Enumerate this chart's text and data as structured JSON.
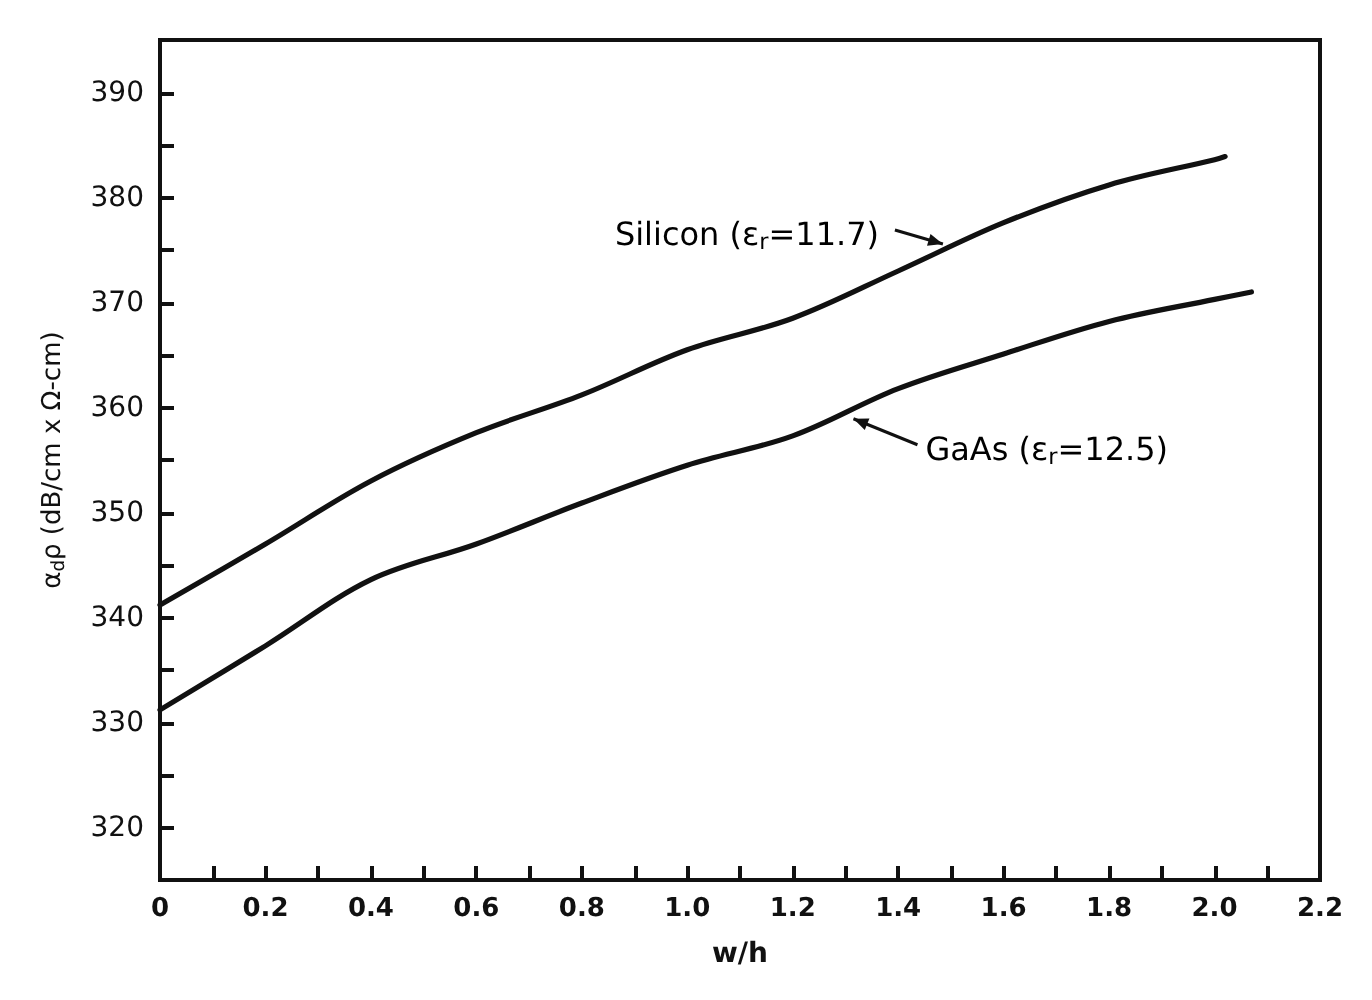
{
  "chart_data": {
    "type": "line",
    "xlabel": "w/h",
    "ylabel": "α$_{d}$ρ (dB/cm x Ω-cm)",
    "xlim": [
      0,
      2.2
    ],
    "ylim": [
      315,
      395
    ],
    "xticks": [
      0,
      {
        "value": 0.1,
        "label": null
      },
      0.2,
      {
        "value": 0.3,
        "label": null
      },
      0.4,
      {
        "value": 0.5,
        "label": null
      },
      0.6,
      {
        "value": 0.7,
        "label": null
      },
      0.8,
      {
        "value": 0.9,
        "label": null
      },
      {
        "value": 1,
        "label": "1.0"
      },
      {
        "value": 1.1,
        "label": null
      },
      1.2,
      {
        "value": 1.3,
        "label": null
      },
      1.4,
      {
        "value": 1.5,
        "label": null
      },
      1.6,
      {
        "value": 1.7,
        "label": null
      },
      1.8,
      {
        "value": 1.9,
        "label": null
      },
      {
        "value": 2,
        "label": "2.0"
      },
      {
        "value": 2.1,
        "label": null
      },
      2.2
    ],
    "yticks": [
      320,
      {
        "value": 325,
        "label": null
      },
      330,
      {
        "value": 335,
        "label": null
      },
      340,
      {
        "value": 345,
        "label": null
      },
      350,
      {
        "value": 355,
        "label": null
      },
      360,
      {
        "value": 365,
        "label": null
      },
      370,
      {
        "value": 375,
        "label": null
      },
      380,
      {
        "value": 385,
        "label": null
      },
      390
    ],
    "grid": false,
    "marker": "none",
    "line_style": "solid",
    "series": [
      {
        "color": "#111111",
        "x": [
          0,
          0.2,
          0.4,
          0.6,
          0.8,
          1.0,
          1.2,
          1.4,
          1.6,
          1.8,
          2.0,
          2.02
        ],
        "values": [
          341.2,
          347,
          353,
          357.6,
          361.2,
          365.5,
          368.5,
          373,
          377.6,
          381.2,
          383.6,
          383.9
        ]
      },
      {
        "color": "#111111",
        "x": [
          0,
          0.2,
          0.4,
          0.6,
          0.8,
          1.0,
          1.2,
          1.4,
          1.6,
          1.8,
          2.0,
          2.07
        ],
        "values": [
          331.2,
          337.3,
          343.6,
          347,
          350.9,
          354.5,
          357.3,
          361.8,
          365.1,
          368.2,
          370.3,
          371
        ]
      }
    ],
    "annotations": [
      {
        "text": "Silicon (ε$_{r}$=11.7)",
        "x": 1.5,
        "y": 375
      },
      {
        "text": "GaAs (ε$_{r}$=12.5)",
        "x": 1.3,
        "y": 359.5
      }
    ]
  }
}
